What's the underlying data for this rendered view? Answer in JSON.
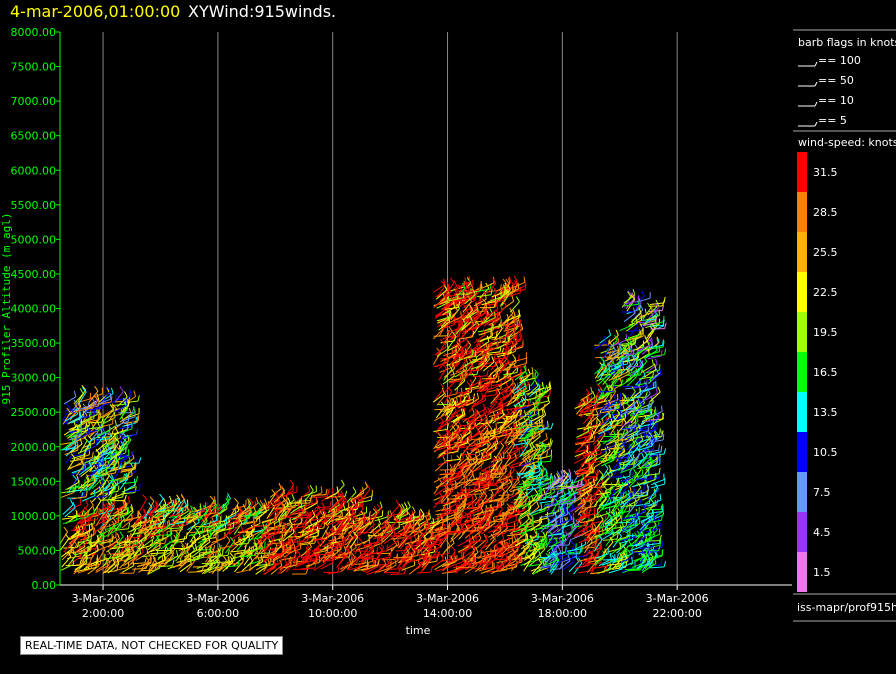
{
  "header": {
    "date_label": "4-mar-2006,01:00:00",
    "product_label": "XYWind:915winds."
  },
  "notice": "REAL-TIME DATA, NOT CHECKED FOR QUALITY",
  "source_label": "iss-mapr/prof915h",
  "colors": {
    "background": "#000000",
    "y_axis_text": "#00ff00",
    "date_text": "#ffff00",
    "gridline": "#888888"
  },
  "barb_legend": {
    "title": "barb flags in knots",
    "items": [
      "== 100",
      "== 50",
      "== 10",
      "== 5"
    ]
  },
  "speed_legend": {
    "title": "wind-speed: knots",
    "levels": [
      {
        "label": "31.5",
        "color": "#ff0000"
      },
      {
        "label": "28.5",
        "color": "#ff7f00"
      },
      {
        "label": "25.5",
        "color": "#ffb000"
      },
      {
        "label": "22.5",
        "color": "#ffff00"
      },
      {
        "label": "19.5",
        "color": "#a0ff00"
      },
      {
        "label": "16.5",
        "color": "#00ff00"
      },
      {
        "label": "13.5",
        "color": "#00ffff"
      },
      {
        "label": "10.5",
        "color": "#0000ff"
      },
      {
        "label": "7.5",
        "color": "#6699ff"
      },
      {
        "label": "4.5",
        "color": "#9933ff"
      },
      {
        "label": "1.5",
        "color": "#ee77ee"
      }
    ]
  },
  "chart_data": {
    "type": "scatter",
    "title": "",
    "xlabel": "time",
    "ylabel": "915 Profiler Altitude (m agl)",
    "ylim": [
      0,
      8000
    ],
    "xlim_hours": [
      0.5,
      26
    ],
    "y_ticks": [
      "0.00",
      "500.00",
      "1000.00",
      "1500.00",
      "2000.00",
      "2500.00",
      "3000.00",
      "3500.00",
      "4000.00",
      "4500.00",
      "5000.00",
      "5500.00",
      "6000.00",
      "6500.00",
      "7000.00",
      "7500.00",
      "8000.00"
    ],
    "x_ticks": [
      {
        "hour": 2,
        "date": "3-Mar-2006",
        "time": "2:00:00"
      },
      {
        "hour": 6,
        "date": "3-Mar-2006",
        "time": "6:00:00"
      },
      {
        "hour": 10,
        "date": "3-Mar-2006",
        "time": "10:00:00"
      },
      {
        "hour": 14,
        "date": "3-Mar-2006",
        "time": "14:00:00"
      },
      {
        "hour": 18,
        "date": "3-Mar-2006",
        "time": "18:00:00"
      },
      {
        "hour": 22,
        "date": "3-Mar-2006",
        "time": "22:00:00"
      }
    ],
    "grid": "vertical",
    "regions": [
      {
        "t0": 0.5,
        "t1": 3.3,
        "top": 1100,
        "speed": 25
      },
      {
        "t0": 0.5,
        "t1": 2.8,
        "top": 2700,
        "speed": 18,
        "base": 1200
      },
      {
        "t0": 3.3,
        "t1": 7.5,
        "top": 1100,
        "speed": 23
      },
      {
        "t0": 7.5,
        "t1": 11.0,
        "top": 1300,
        "speed": 30
      },
      {
        "t0": 11.0,
        "t1": 13.5,
        "top": 1000,
        "speed": 31
      },
      {
        "t0": 13.5,
        "t1": 16.3,
        "top": 4300,
        "speed": 30
      },
      {
        "t0": 16.3,
        "t1": 17.2,
        "top": 3000,
        "speed": 20
      },
      {
        "t0": 17.2,
        "t1": 18.4,
        "top": 1500,
        "speed": 11
      },
      {
        "t0": 18.4,
        "t1": 19.1,
        "top": 2700,
        "speed": 30
      },
      {
        "t0": 19.1,
        "t1": 20.0,
        "top": 3500,
        "speed": 18
      },
      {
        "t0": 20.0,
        "t1": 21.1,
        "top": 4100,
        "speed": 14
      }
    ]
  }
}
